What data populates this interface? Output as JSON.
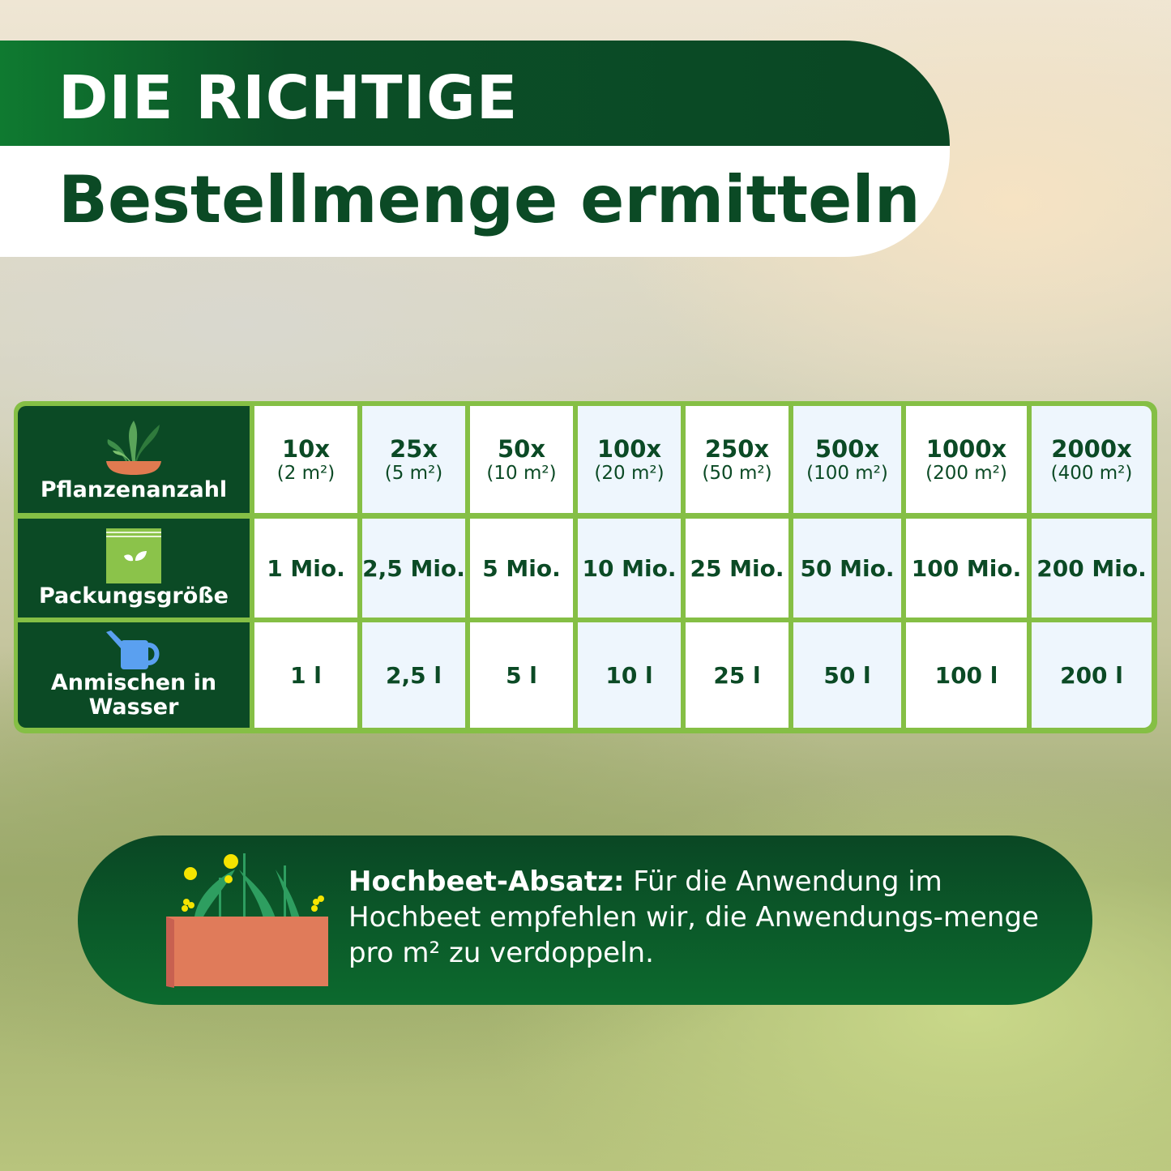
{
  "header": {
    "line1": "DIE RICHTIGE",
    "line2": "Bestellmenge ermitteln"
  },
  "table": {
    "row_labels": [
      "Pflanzenanzahl",
      "Packungsgröße",
      "Anmischen in Wasser"
    ],
    "row_icons": [
      "plant-pot-icon",
      "seed-pack-icon",
      "watering-can-icon"
    ],
    "columns": [
      {
        "count": "10x",
        "area": "(2 m²)",
        "package": "1 Mio.",
        "water": "1 l"
      },
      {
        "count": "25x",
        "area": "(5 m²)",
        "package": "2,5 Mio.",
        "water": "2,5 l"
      },
      {
        "count": "50x",
        "area": "(10 m²)",
        "package": "5 Mio.",
        "water": "5 l"
      },
      {
        "count": "100x",
        "area": "(20 m²)",
        "package": "10 Mio.",
        "water": "10 l"
      },
      {
        "count": "250x",
        "area": "(50 m²)",
        "package": "25 Mio.",
        "water": "25 l"
      },
      {
        "count": "500x",
        "area": "(100 m²)",
        "package": "50 Mio.",
        "water": "50 l"
      },
      {
        "count": "1000x",
        "area": "(200 m²)",
        "package": "100 Mio.",
        "water": "100 l"
      },
      {
        "count": "2000x",
        "area": "(400 m²)",
        "package": "200 Mio.",
        "water": "200 l"
      }
    ]
  },
  "note": {
    "bold": "Hochbeet-Absatz:",
    "text": " Für die Anwendung im Hochbeet empfehlen wir, die Anwendungs-menge pro m² zu verdoppeln.",
    "icon": "raised-bed-icon"
  },
  "colors": {
    "dark_green": "#0b4a25",
    "border_green": "#85bf45",
    "alt_cell": "#eef6fd"
  }
}
